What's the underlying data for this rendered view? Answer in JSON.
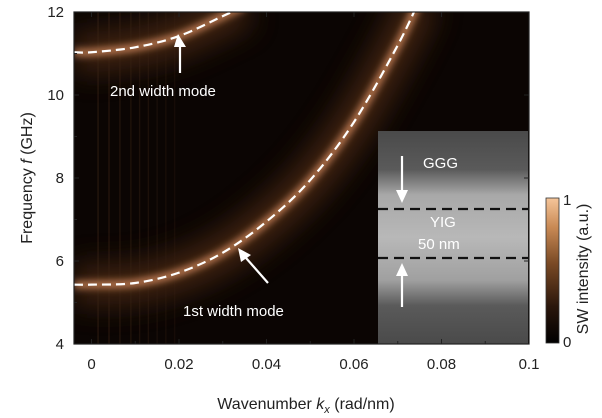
{
  "chart_data": {
    "type": "heatmap",
    "xlabel_prefix": "Wavenumber ",
    "xlabel_var": "k",
    "xlabel_sub": "x",
    "xlabel_suffix": " (rad/nm)",
    "ylabel_prefix": "Frequency ",
    "ylabel_var": "f",
    "ylabel_suffix": " (GHz)",
    "xlim": [
      -0.004,
      0.1
    ],
    "ylim": [
      4,
      12
    ],
    "xticks": [
      0,
      0.02,
      0.04,
      0.06,
      0.08,
      0.1
    ],
    "xtick_labels": [
      "0",
      "0.02",
      "0.04",
      "0.06",
      "0.08",
      "0.1"
    ],
    "yticks": [
      4,
      6,
      8,
      10,
      12
    ],
    "ytick_labels": [
      "4",
      "6",
      "8",
      "10",
      "12"
    ],
    "series": [
      {
        "name": "1st width mode",
        "x": [
          -0.004,
          0,
          0.01,
          0.02,
          0.03,
          0.04,
          0.05,
          0.06,
          0.07,
          0.075
        ],
        "y": [
          5.43,
          5.43,
          5.47,
          5.72,
          6.2,
          6.95,
          7.95,
          9.35,
          11.2,
          12.3
        ]
      },
      {
        "name": "2nd width mode",
        "x": [
          -0.004,
          0,
          0.01,
          0.02,
          0.03,
          0.035
        ],
        "y": [
          11.03,
          11.03,
          11.15,
          11.42,
          11.9,
          12.15
        ]
      }
    ],
    "annotations": [
      {
        "text": "2nd width mode"
      },
      {
        "text": "1st width mode"
      }
    ],
    "colorbar": {
      "label": "SW intensity (a.u.)",
      "min_label": "0",
      "max_label": "1",
      "colors": [
        "#000000",
        "#2a160b",
        "#7a4a25",
        "#c98a55",
        "#f5c59a"
      ]
    },
    "inset": {
      "labels": [
        "GGG",
        "YIG",
        "50 nm"
      ]
    },
    "line_color": "#ffffff",
    "glow_color": "#f2a06a"
  }
}
